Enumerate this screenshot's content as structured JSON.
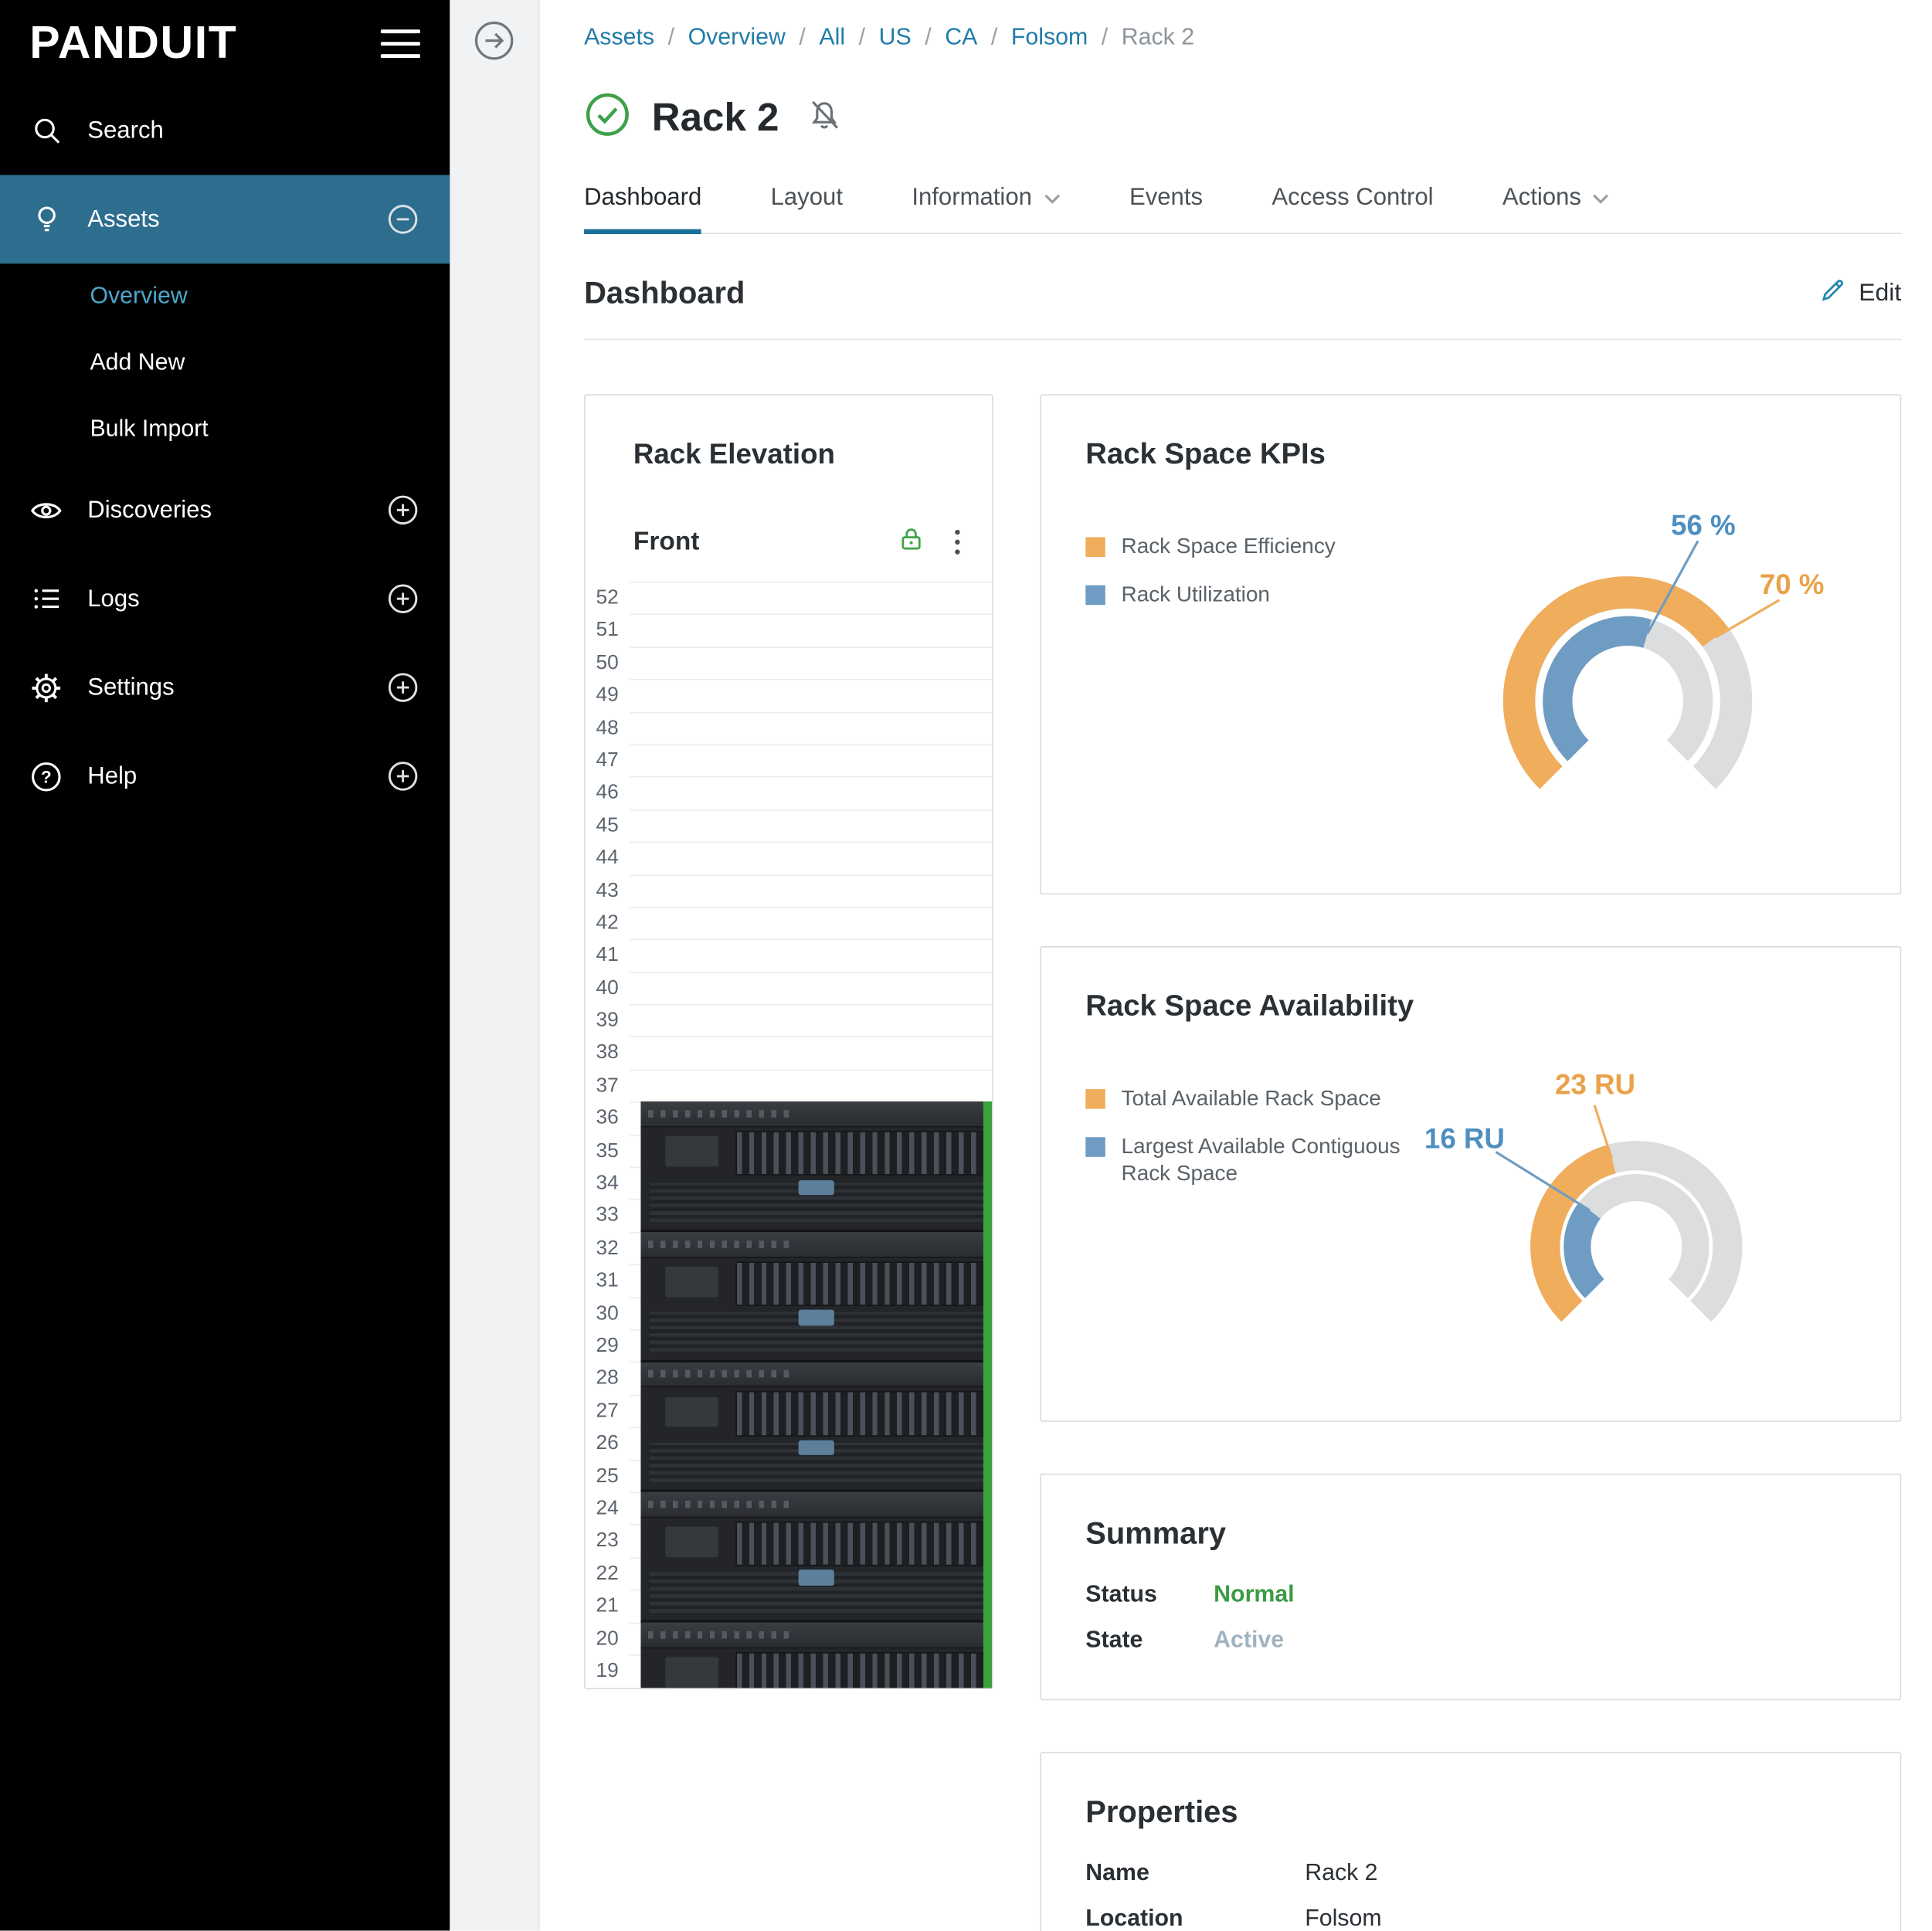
{
  "sidebar": {
    "logo": "PANDUIT",
    "items": [
      {
        "label": "Search",
        "icon": "search-icon"
      },
      {
        "label": "Assets",
        "icon": "lightbulb-icon",
        "active": true,
        "edge_icon": "minus-circle-icon"
      },
      {
        "label": "Discoveries",
        "icon": "eye-icon",
        "edge_icon": "plus-circle-icon"
      },
      {
        "label": "Logs",
        "icon": "list-icon",
        "edge_icon": "plus-circle-icon"
      },
      {
        "label": "Settings",
        "icon": "gear-icon",
        "edge_icon": "plus-circle-icon"
      },
      {
        "label": "Help",
        "icon": "question-circle-icon",
        "edge_icon": "plus-circle-icon"
      }
    ],
    "assets_submenu": [
      {
        "label": "Overview",
        "active": true
      },
      {
        "label": "Add New"
      },
      {
        "label": "Bulk Import"
      }
    ]
  },
  "breadcrumb": {
    "items": [
      "Assets",
      "Overview",
      "All",
      "US",
      "CA",
      "Folsom"
    ],
    "current": "Rack 2",
    "separator": "/"
  },
  "page": {
    "title": "Rack 2"
  },
  "tabs": [
    {
      "label": "Dashboard",
      "active": true
    },
    {
      "label": "Layout"
    },
    {
      "label": "Information",
      "caret": true
    },
    {
      "label": "Events"
    },
    {
      "label": "Access Control"
    },
    {
      "label": "Actions",
      "caret": true
    }
  ],
  "dashboard": {
    "heading": "Dashboard",
    "edit_label": "Edit"
  },
  "rack_elevation": {
    "title": "Rack Elevation",
    "view_label": "Front",
    "top_unit": 52,
    "bottom_unit": 19,
    "servers": [
      {
        "top_unit": 36,
        "height_units": 4
      },
      {
        "top_unit": 32,
        "height_units": 4
      },
      {
        "top_unit": 28,
        "height_units": 4
      },
      {
        "top_unit": 24,
        "height_units": 4
      },
      {
        "top_unit": 20,
        "height_units": 4
      }
    ],
    "status_color": "#3AA23C"
  },
  "rack_space_kpis": {
    "title": "Rack Space KPIs",
    "legend": [
      {
        "label": "Rack Space Efficiency",
        "color": "#F0AD5C"
      },
      {
        "label": "Rack Utilization",
        "color": "#6F9CC2"
      }
    ],
    "efficiency_pct": 70,
    "utilization_pct": 56,
    "efficiency_label": "70 %",
    "utilization_label": "56 %"
  },
  "rack_space_availability": {
    "title": "Rack Space Availability",
    "legend": [
      {
        "label": "Total Available Rack Space",
        "color": "#F0AD5C"
      },
      {
        "label": "Largest Available Contiguous Rack Space",
        "color": "#6F9CC2"
      }
    ],
    "total_ru": 23,
    "contiguous_ru": 16,
    "rack_units_total": 52,
    "total_label": "23 RU",
    "contiguous_label": "16 RU"
  },
  "summary": {
    "title": "Summary",
    "rows": [
      {
        "label": "Status",
        "value": "Normal",
        "tone": "positive"
      },
      {
        "label": "State",
        "value": "Active",
        "tone": "muted"
      }
    ]
  },
  "properties": {
    "title": "Properties",
    "rows": [
      {
        "label": "Name",
        "value": "Rack 2"
      },
      {
        "label": "Location",
        "value": "Folsom"
      }
    ]
  },
  "colors": {
    "link_blue": "#1F7CA8",
    "active_nav": "#2D6D8E",
    "tab_underline": "#1C6F9A",
    "positive_green": "#3C9B43",
    "gauge_orange": "#F0AD5C",
    "gauge_blue": "#6F9CC2",
    "gauge_track": "#DBDDDE"
  }
}
